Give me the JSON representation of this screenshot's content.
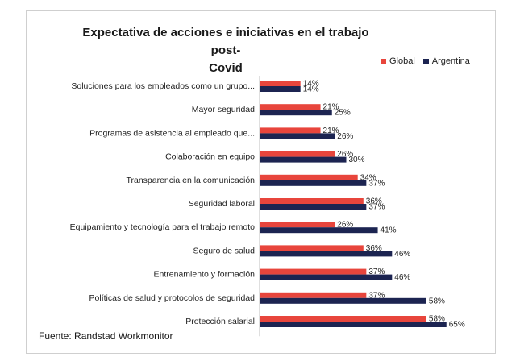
{
  "chart_data": {
    "type": "bar",
    "orientation": "horizontal",
    "title": "Expectativa de acciones e iniciativas en el trabajo post-Covid",
    "title_lines": [
      "Expectativa de acciones e iniciativas en el trabajo post-",
      "Covid"
    ],
    "categories": [
      "Soluciones para los empleados como un grupo...",
      "Mayor seguridad",
      "Programas de asistencia al empleado que...",
      "Colaboración en equipo",
      "Transparencia en la comunicación",
      "Seguridad laboral",
      "Equipamiento y tecnología para el trabajo remoto",
      "Seguro de salud",
      "Entrenamiento y formación",
      "Políticas de salud y protocolos de seguridad",
      "Protección salarial"
    ],
    "series": [
      {
        "name": "Global",
        "color": "#e8453c",
        "values": [
          14,
          21,
          21,
          26,
          34,
          36,
          26,
          36,
          37,
          37,
          58
        ]
      },
      {
        "name": "Argentina",
        "color": "#1c2451",
        "values": [
          14,
          25,
          26,
          30,
          37,
          37,
          41,
          46,
          46,
          58,
          65
        ]
      }
    ],
    "value_suffix": "%",
    "xlim": [
      0,
      100
    ],
    "legend_position": "top-right",
    "grid": false
  },
  "source": "Fuente:  Randstad  Workmonitor"
}
